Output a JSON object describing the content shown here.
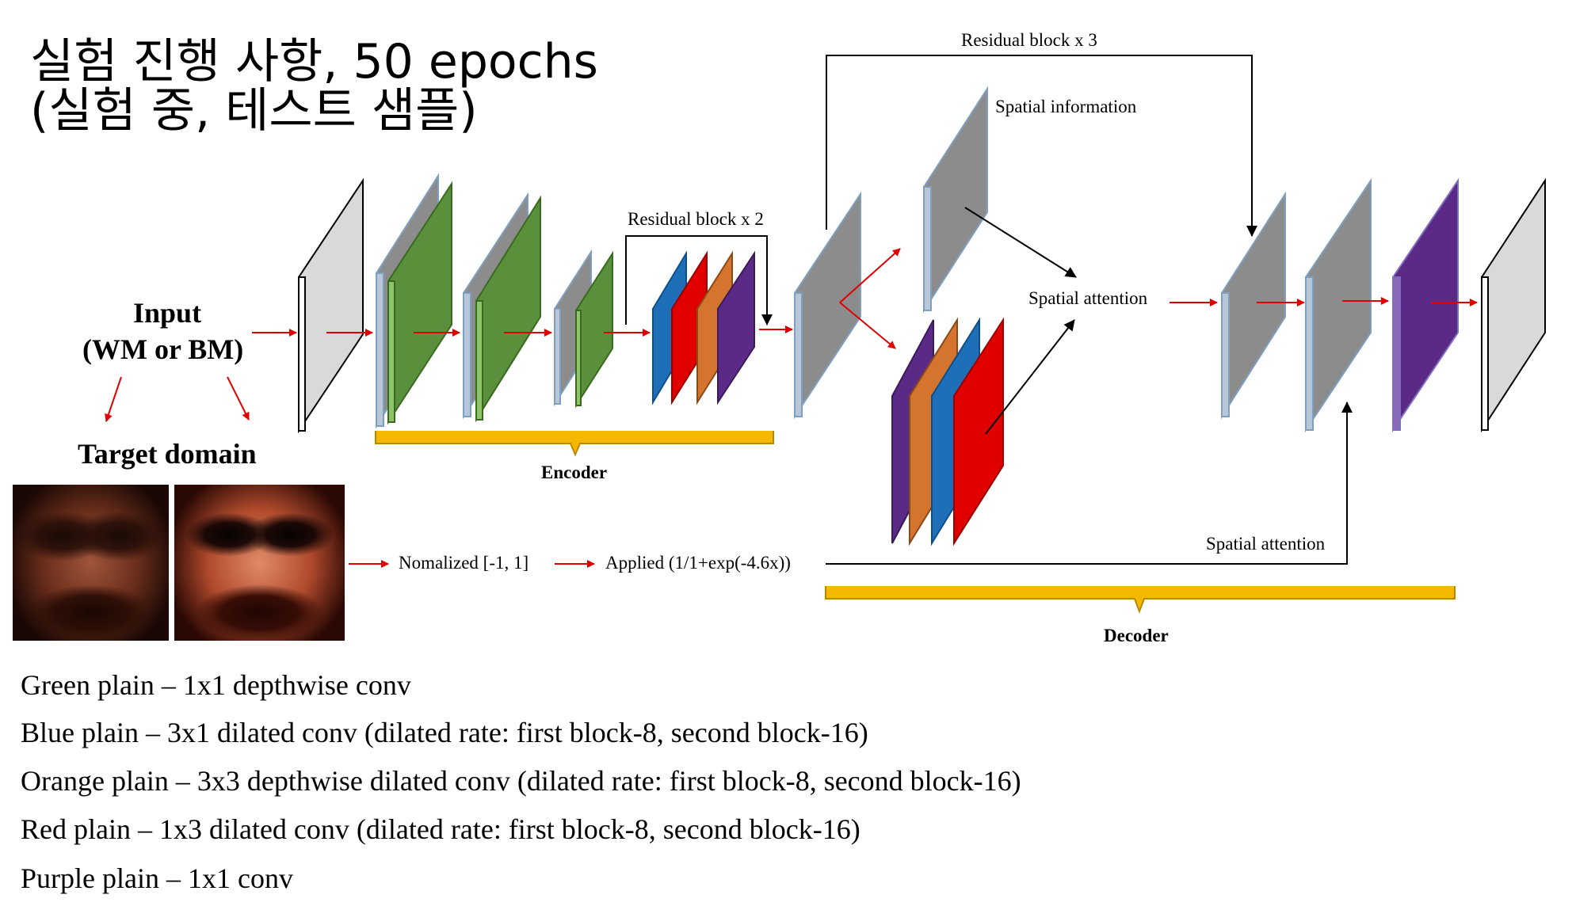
{
  "title": {
    "line1": "실험 진행 사항, 50 epochs",
    "line2": "(실험 중, 테스트 샘플)"
  },
  "labels": {
    "input_line1": "Input",
    "input_line2": "(WM or BM)",
    "target_domain": "Target domain",
    "encoder": "Encoder",
    "decoder": "Decoder",
    "residual_x2": "Residual block x 2",
    "residual_x3": "Residual block x 3",
    "spatial_information": "Spatial information",
    "spatial_attention_center": "Spatial attention",
    "spatial_attention_bottom": "Spatial attention",
    "normalized": "Nomalized [-1, 1]",
    "applied": "Applied (1/1+exp(-4.6x))"
  },
  "legend": [
    "Green plain – 1x1 depthwise conv",
    "Blue plain – 3x1 dilated conv (dilated rate: first block-8, second block-16)",
    "Orange plain – 3x3 depthwise dilated conv (dilated rate: first block-8, second block-16)",
    "Red plain – 1x3 dilated conv (dilated rate: first block-8, second block-16)",
    "Purple plain – 1x1 conv"
  ],
  "colors": {
    "green": "#5a8f3c",
    "blue": "#1f6fb8",
    "orange": "#d4742e",
    "red": "#e00000",
    "purple": "#5b2a86",
    "gray": "#8c8c8c",
    "light_gray": "#d9d9d9",
    "brace": "#f5b800",
    "arrow_red": "#e00000"
  },
  "images": [
    "target-face-wm",
    "target-face-bm"
  ]
}
